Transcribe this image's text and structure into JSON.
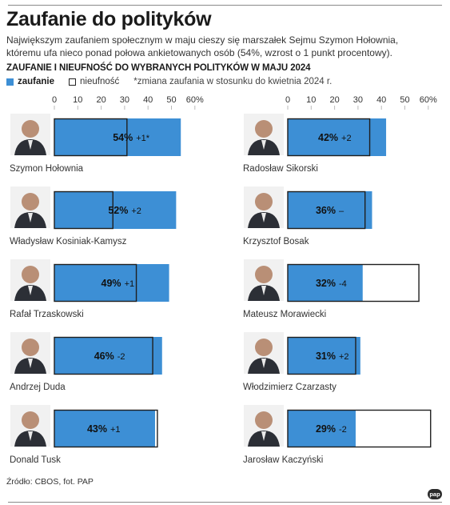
{
  "header": {
    "title": "Zaufanie do polityków",
    "lede": "Największym zaufaniem społecznym w maju cieszy się marszałek Sejmu Szymon Hołownia, któremu ufa nieco ponad połowa ankietowanych osób (54%, wzrost o 1 punkt procentowy).",
    "subtitle": "ZAUFANIE I NIEUFNOŚĆ DO WYBRANYCH POLITYKÓW W MAJU 2024"
  },
  "legend": {
    "trust_label": "zaufanie",
    "distrust_label": "nieufność",
    "note": "*zmiana zaufania w stosunku do kwietnia 2024 r."
  },
  "colors": {
    "trust": "#3d8fd5",
    "distrust": "#ffffff",
    "outline": "#1f1f1f"
  },
  "footer": {
    "source": "Źródło: CBOS, fot. PAP",
    "logo": "pap"
  },
  "chart_data": {
    "type": "bar",
    "orientation": "horizontal",
    "axis": {
      "ticks": [
        "0",
        "10",
        "20",
        "30",
        "40",
        "50",
        "60%"
      ],
      "range": [
        0,
        60
      ]
    },
    "grid": false,
    "legend_position": "top-left",
    "series": [
      {
        "name": "zaufanie"
      },
      {
        "name": "nieufność"
      }
    ],
    "panels": [
      {
        "politicians": [
          {
            "name": "Szymon Hołownia",
            "trust": 54,
            "distrust": 31,
            "trust_label": "54%",
            "change": "+1*"
          },
          {
            "name": "Władysław Kosiniak-Kamysz",
            "trust": 52,
            "distrust": 25,
            "trust_label": "52%",
            "change": "+2"
          },
          {
            "name": "Rafał Trzaskowski",
            "trust": 49,
            "distrust": 35,
            "trust_label": "49%",
            "change": "+1"
          },
          {
            "name": "Andrzej Duda",
            "trust": 46,
            "distrust": 42,
            "trust_label": "46%",
            "change": "-2"
          },
          {
            "name": "Donald Tusk",
            "trust": 43,
            "distrust": 44,
            "trust_label": "43%",
            "change": "+1"
          }
        ]
      },
      {
        "politicians": [
          {
            "name": "Radosław Sikorski",
            "trust": 42,
            "distrust": 35,
            "trust_label": "42%",
            "change": "+2"
          },
          {
            "name": "Krzysztof Bosak",
            "trust": 36,
            "distrust": 33,
            "trust_label": "36%",
            "change": "–"
          },
          {
            "name": "Mateusz Morawiecki",
            "trust": 32,
            "distrust": 56,
            "trust_label": "32%",
            "change": "-4"
          },
          {
            "name": "Włodzimierz Czarzasty",
            "trust": 31,
            "distrust": 29,
            "trust_label": "31%",
            "change": "+2"
          },
          {
            "name": "Jarosław Kaczyński",
            "trust": 29,
            "distrust": 61,
            "trust_label": "29%",
            "change": "-2"
          }
        ]
      }
    ]
  }
}
